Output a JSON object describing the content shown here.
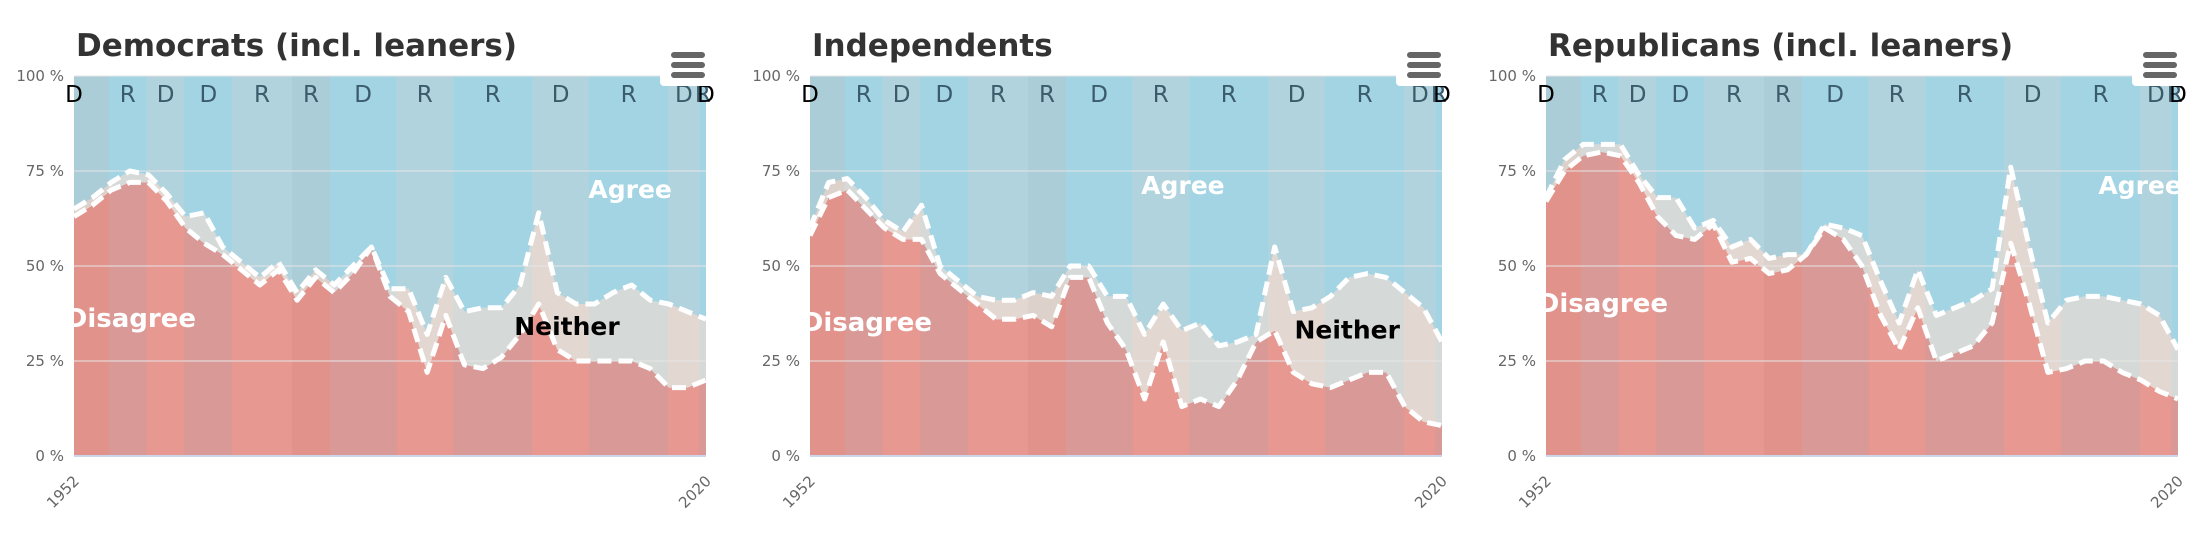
{
  "panels": [
    {
      "title": "Democrats (incl. leaners)"
    },
    {
      "title": "Independents"
    },
    {
      "title": "Republicans (incl. leaners)"
    }
  ],
  "colors": {
    "agree": "#a9d5e3",
    "disagree": "#ef8a80",
    "neither": "#eadcd2",
    "overlay": "#c8c8c8"
  },
  "chart_data": [
    {
      "type": "area",
      "title": "Democrats (incl. leaners)",
      "x_ticks": [
        "1952",
        "2020"
      ],
      "y_ticks": [
        "0 %",
        "25 %",
        "50 %",
        "75 %",
        "100 %"
      ],
      "ylim": [
        0,
        100
      ],
      "stacked_percent": true,
      "x": [
        1952,
        1954,
        1956,
        1958,
        1960,
        1962,
        1964,
        1966,
        1968,
        1970,
        1972,
        1974,
        1976,
        1978,
        1980,
        1982,
        1984,
        1986,
        1988,
        1990,
        1992,
        1994,
        1996,
        1998,
        2000,
        2002,
        2004,
        2006,
        2008,
        2010,
        2012,
        2014,
        2016,
        2018,
        2020
      ],
      "series": [
        {
          "name": "Disagree",
          "values": [
            63,
            66,
            70,
            72,
            72,
            67,
            60,
            56,
            53,
            49,
            45,
            49,
            41,
            47,
            43,
            48,
            55,
            42,
            38,
            22,
            37,
            24,
            23,
            26,
            32,
            40,
            28,
            25,
            25,
            25,
            25,
            23,
            18,
            18,
            20
          ]
        },
        {
          "name": "Neither",
          "values": [
            2,
            2,
            2,
            3,
            2,
            2,
            3,
            8,
            2,
            2,
            2,
            2,
            2,
            2,
            2,
            2,
            0,
            2,
            6,
            10,
            10,
            14,
            16,
            13,
            13,
            24,
            15,
            15,
            15,
            18,
            20,
            18,
            22,
            20,
            16
          ]
        },
        {
          "name": "Agree",
          "values": [
            35,
            32,
            28,
            25,
            26,
            31,
            37,
            36,
            45,
            49,
            53,
            49,
            57,
            51,
            55,
            50,
            45,
            56,
            56,
            68,
            53,
            62,
            61,
            61,
            55,
            36,
            57,
            60,
            60,
            57,
            55,
            59,
            60,
            62,
            64
          ]
        }
      ],
      "labels": [
        {
          "text": "Agree"
        },
        {
          "text": "Neither"
        },
        {
          "text": "Disagree"
        }
      ],
      "party_bands": [
        "D",
        "R",
        "D",
        "D",
        "R",
        "R",
        "D",
        "R",
        "R",
        "D",
        "R",
        "D",
        "R",
        "D"
      ]
    },
    {
      "type": "area",
      "title": "Independents",
      "x_ticks": [
        "1952",
        "2020"
      ],
      "y_ticks": [
        "0 %",
        "25 %",
        "50 %",
        "75 %",
        "100 %"
      ],
      "ylim": [
        0,
        100
      ],
      "stacked_percent": true,
      "x": [
        1952,
        1954,
        1956,
        1958,
        1960,
        1962,
        1964,
        1966,
        1968,
        1970,
        1972,
        1974,
        1976,
        1978,
        1980,
        1982,
        1984,
        1986,
        1988,
        1990,
        1992,
        1994,
        1996,
        1998,
        2000,
        2002,
        2004,
        2006,
        2008,
        2010,
        2012,
        2014,
        2016,
        2018,
        2020
      ],
      "series": [
        {
          "name": "Disagree",
          "values": [
            58,
            68,
            70,
            65,
            60,
            57,
            57,
            48,
            44,
            40,
            36,
            36,
            37,
            34,
            47,
            47,
            35,
            28,
            15,
            30,
            13,
            15,
            13,
            20,
            30,
            33,
            22,
            19,
            18,
            20,
            22,
            22,
            13,
            9,
            8
          ]
        },
        {
          "name": "Neither",
          "values": [
            2,
            4,
            3,
            3,
            2,
            2,
            9,
            2,
            2,
            2,
            5,
            5,
            6,
            8,
            3,
            3,
            7,
            14,
            17,
            10,
            20,
            20,
            16,
            10,
            2,
            22,
            16,
            20,
            24,
            27,
            26,
            25,
            30,
            30,
            22
          ]
        },
        {
          "name": "Agree",
          "values": [
            40,
            28,
            27,
            32,
            38,
            41,
            34,
            50,
            54,
            58,
            59,
            59,
            57,
            58,
            50,
            50,
            58,
            58,
            68,
            60,
            67,
            65,
            71,
            70,
            68,
            45,
            62,
            61,
            58,
            53,
            52,
            53,
            57,
            61,
            70
          ]
        }
      ],
      "labels": [
        {
          "text": "Agree"
        },
        {
          "text": "Neither"
        },
        {
          "text": "Disagree"
        }
      ],
      "party_bands": [
        "D",
        "R",
        "D",
        "D",
        "R",
        "R",
        "D",
        "R",
        "R",
        "D",
        "R",
        "D",
        "R",
        "D"
      ]
    },
    {
      "type": "area",
      "title": "Republicans (incl. leaners)",
      "x_ticks": [
        "1952",
        "2020"
      ],
      "y_ticks": [
        "0 %",
        "25 %",
        "50 %",
        "75 %",
        "100 %"
      ],
      "ylim": [
        0,
        100
      ],
      "stacked_percent": true,
      "x": [
        1952,
        1954,
        1956,
        1958,
        1960,
        1962,
        1964,
        1966,
        1968,
        1970,
        1972,
        1974,
        1976,
        1978,
        1980,
        1982,
        1984,
        1986,
        1988,
        1990,
        1992,
        1994,
        1996,
        1998,
        2000,
        2002,
        2004,
        2006,
        2008,
        2010,
        2012,
        2014,
        2016,
        2018,
        2020
      ],
      "series": [
        {
          "name": "Disagree",
          "values": [
            67,
            75,
            79,
            80,
            79,
            72,
            63,
            58,
            57,
            61,
            51,
            52,
            48,
            49,
            53,
            60,
            57,
            50,
            37,
            28,
            39,
            25,
            27,
            29,
            35,
            56,
            40,
            22,
            23,
            25,
            25,
            22,
            20,
            17,
            15
          ]
        },
        {
          "name": "Neither",
          "values": [
            1,
            3,
            3,
            2,
            3,
            2,
            5,
            10,
            3,
            1,
            4,
            5,
            4,
            4,
            0,
            1,
            3,
            8,
            9,
            7,
            10,
            12,
            12,
            12,
            9,
            20,
            15,
            13,
            18,
            17,
            17,
            19,
            20,
            20,
            13
          ]
        },
        {
          "name": "Agree",
          "values": [
            32,
            22,
            18,
            18,
            18,
            26,
            32,
            32,
            40,
            38,
            45,
            43,
            48,
            47,
            47,
            39,
            40,
            42,
            54,
            65,
            51,
            63,
            61,
            59,
            56,
            24,
            45,
            65,
            59,
            58,
            58,
            59,
            60,
            63,
            72
          ]
        }
      ],
      "labels": [
        {
          "text": "Agree"
        },
        {
          "text": "Disagree"
        }
      ],
      "party_bands": [
        "D",
        "R",
        "D",
        "D",
        "R",
        "R",
        "D",
        "R",
        "R",
        "D",
        "R",
        "D",
        "R",
        "D"
      ]
    }
  ]
}
